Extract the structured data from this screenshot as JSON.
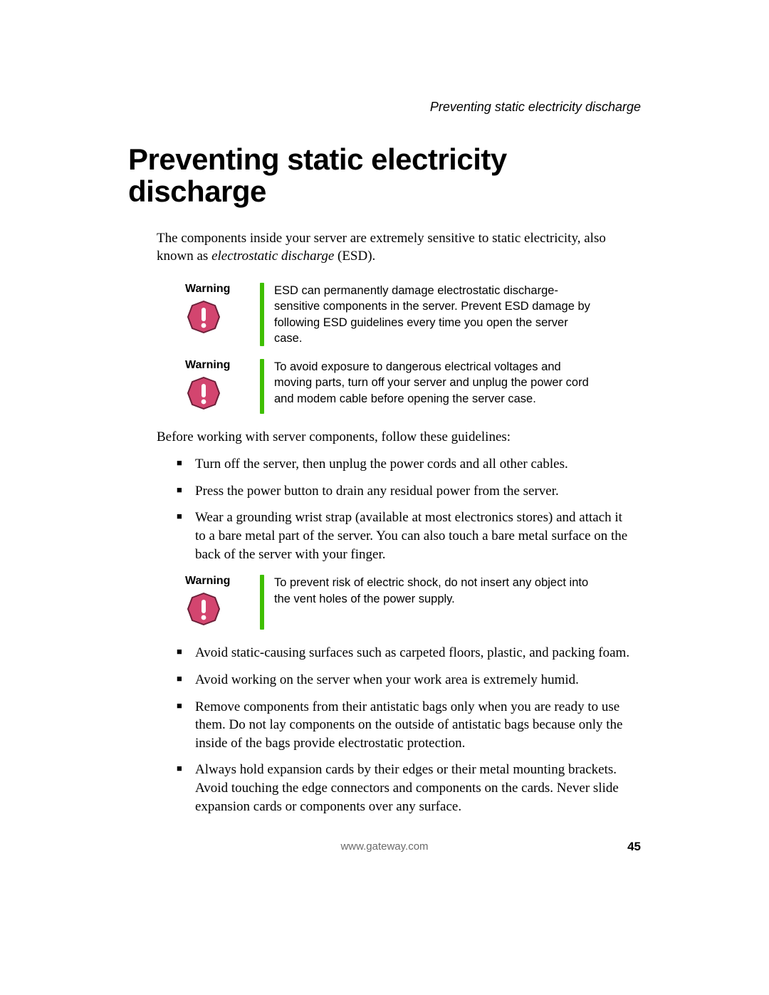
{
  "running_head": "Preventing static electricity discharge",
  "title": "Preventing static electricity discharge",
  "intro_pre": "The components inside your server are extremely sensitive to static electricity, also known as ",
  "intro_ital": "electrostatic discharge",
  "intro_post": " (ESD).",
  "warning_label": "Warning",
  "warnings_top": [
    "ESD can permanently damage electrostatic discharge-sensitive components in the server. Prevent ESD damage by following ESD guidelines every time you open the server case.",
    "To avoid exposure to dangerous electrical voltages and moving parts, turn off your server and unplug the power cord and modem cable before opening the server case."
  ],
  "lead": "Before working with server components, follow these guidelines:",
  "bullets_a": [
    "Turn off the server, then unplug the power cords and all other cables.",
    "Press the power button to drain any residual power from the server.",
    "Wear a grounding wrist strap (available at most electronics stores) and attach it to a bare metal part of the server. You can also touch a bare metal surface on the back of the server with your finger."
  ],
  "warning_mid": "To prevent risk of electric shock, do not insert any object into the vent holes of the power supply.",
  "bullets_b": [
    "Avoid static-causing surfaces such as carpeted floors, plastic, and packing foam.",
    "Avoid working on the server when your work area is extremely humid.",
    "Remove components from their antistatic bags only when you are ready to use them. Do not lay components on the outside of antistatic bags because only the inside of the bags provide electrostatic protection.",
    "Always hold expansion cards by their edges or their metal mounting brackets. Avoid touching the edge connectors and components on the cards. Never slide expansion cards or components over any surface."
  ],
  "footer_url": "www.gateway.com",
  "page_number": "45",
  "colors": {
    "bar": "#3fbf00",
    "icon_fill": "#d3456f",
    "icon_stroke": "#6b1f38",
    "icon_glyph": "#ffffff",
    "footer_url": "#6b6b6b"
  }
}
